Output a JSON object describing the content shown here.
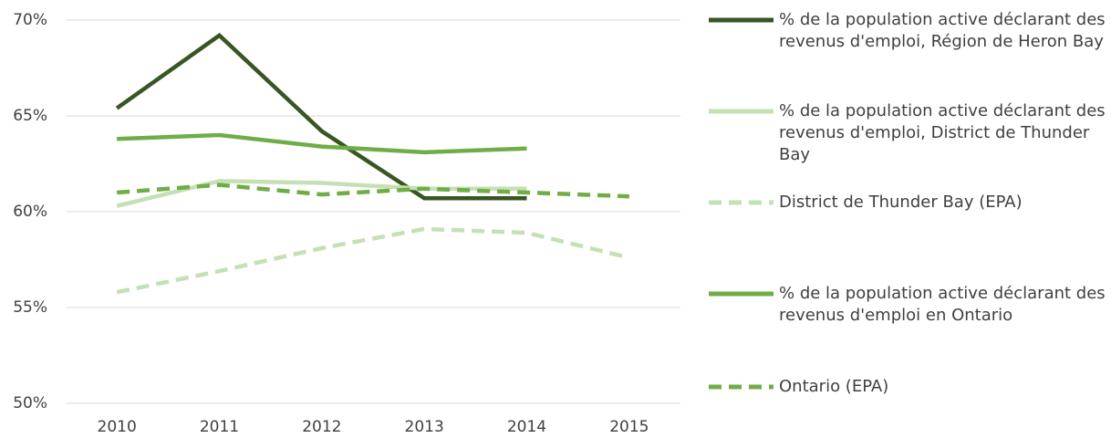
{
  "chart_data": {
    "type": "line",
    "categories": [
      "2010",
      "2011",
      "2012",
      "2013",
      "2014",
      "2015"
    ],
    "ylim": [
      50,
      70
    ],
    "yticks": [
      {
        "value": 50,
        "label": "50%"
      },
      {
        "value": 55,
        "label": "55%"
      },
      {
        "value": 60,
        "label": "60%"
      },
      {
        "value": 65,
        "label": "65%"
      },
      {
        "value": 70,
        "label": "70%"
      }
    ],
    "grid": true,
    "legend": "right",
    "series": [
      {
        "name": "% de la population active déclarant des revenus d'emploi, Région de Heron Bay",
        "color": "#375623",
        "dashed": false,
        "values": [
          65.4,
          69.2,
          64.2,
          60.7,
          60.7,
          null
        ]
      },
      {
        "name": "% de la population active déclarant des revenus d'emploi, District de Thunder Bay",
        "color": "#c5e0b4",
        "dashed": false,
        "values": [
          60.3,
          61.6,
          61.5,
          61.2,
          61.2,
          null
        ]
      },
      {
        "name": "District de Thunder Bay (EPA)",
        "color": "#c5e0b4",
        "dashed": true,
        "values": [
          55.8,
          56.9,
          58.1,
          59.1,
          58.9,
          57.6
        ]
      },
      {
        "name": "% de la population active déclarant des revenus d'emploi en Ontario",
        "color": "#70ad47",
        "dashed": false,
        "values": [
          63.8,
          64.0,
          63.4,
          63.1,
          63.3,
          null
        ]
      },
      {
        "name": "Ontario (EPA)",
        "color": "#70ad47",
        "dashed": true,
        "values": [
          61.0,
          61.4,
          60.9,
          61.2,
          61.0,
          60.8
        ]
      }
    ]
  }
}
